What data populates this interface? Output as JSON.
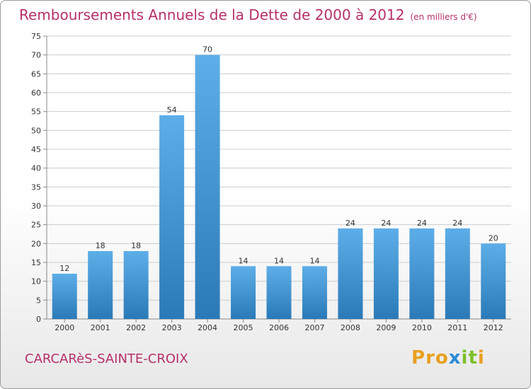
{
  "header": {
    "title": "Remboursements Annuels de la Dette de 2000 à 2012",
    "subtitle": "(en milliers d'€)"
  },
  "footer": {
    "city": "CARCARèS-SAINTE-CROIX",
    "logo": [
      "P",
      "r",
      "o",
      "x",
      "i",
      "t",
      "i"
    ]
  },
  "colors": {
    "title": "#b5306a",
    "bar_light": "#5daee8",
    "bar_dark": "#2a7ab8",
    "grid": "#cccccc",
    "logo": [
      "#e8a020",
      "#e8a020",
      "#e8a020",
      "#2a8ad8",
      "#7cbf2a",
      "#7cbf2a",
      "#e8a020"
    ]
  },
  "chart_data": {
    "type": "bar",
    "categories": [
      "2000",
      "2001",
      "2002",
      "2003",
      "2004",
      "2005",
      "2006",
      "2007",
      "2008",
      "2009",
      "2010",
      "2011",
      "2012"
    ],
    "values": [
      12,
      18,
      18,
      54,
      70,
      14,
      14,
      14,
      24,
      24,
      24,
      24,
      20
    ],
    "ylim": [
      0,
      75
    ],
    "yticks": [
      0,
      5,
      10,
      15,
      20,
      25,
      30,
      35,
      40,
      45,
      50,
      55,
      60,
      65,
      70,
      75
    ],
    "grid": true
  }
}
